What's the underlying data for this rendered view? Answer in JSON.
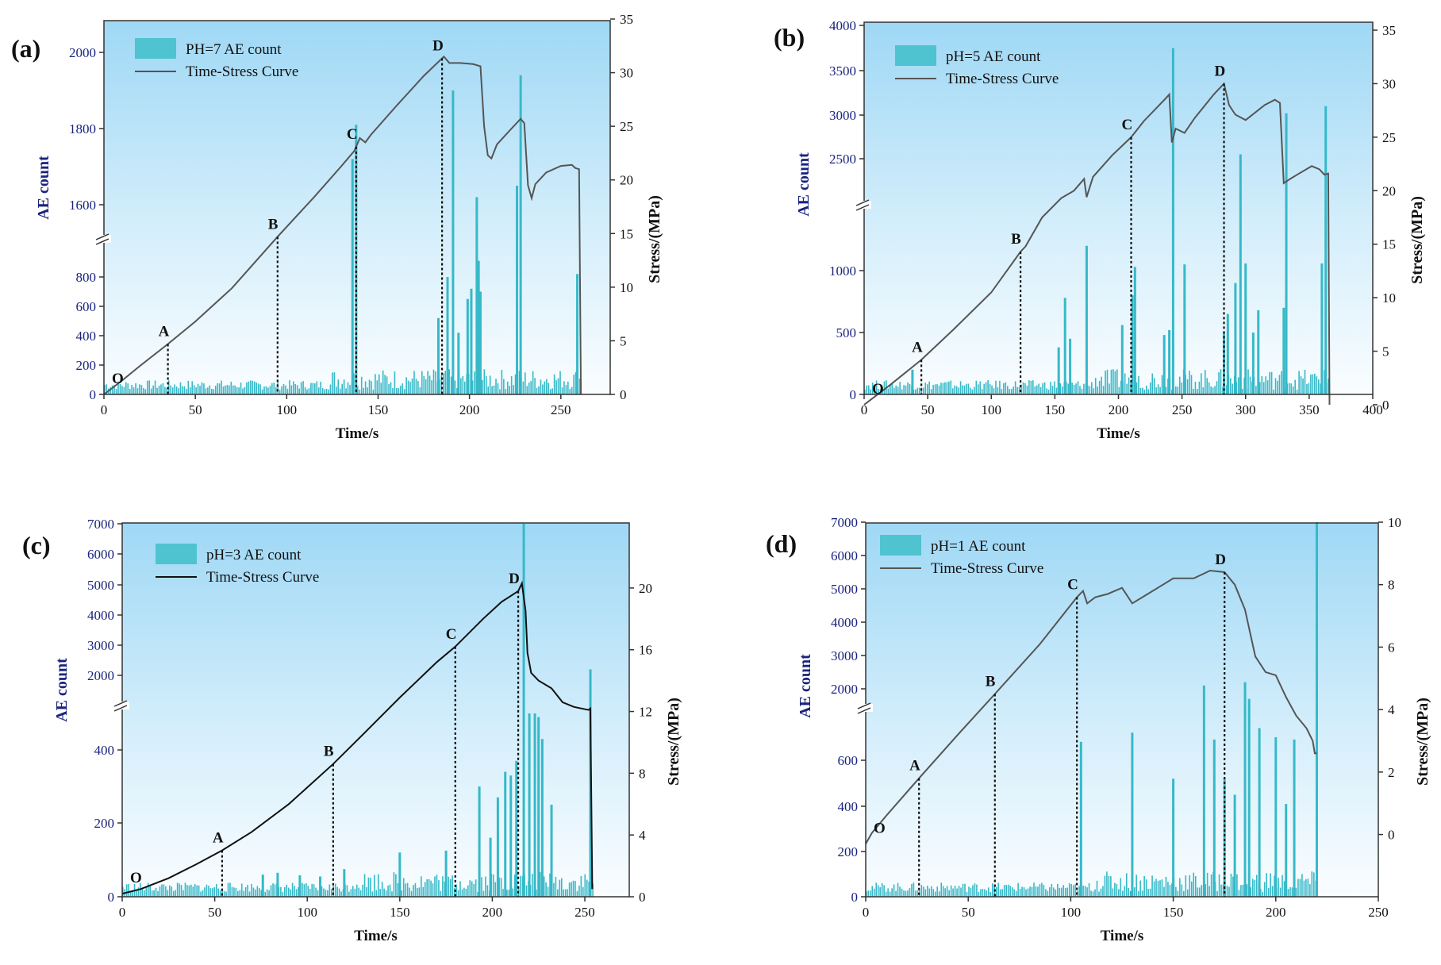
{
  "chart_data": [
    {
      "panel_label": "(a)",
      "type": "bar+line",
      "xlabel": "Time/s",
      "ylabel_left": "AE count",
      "ylabel_right": "Stress/(MPa)",
      "xlim": [
        0,
        277
      ],
      "x_ticks": [
        "0",
        "50",
        "100",
        "150",
        "200",
        "250"
      ],
      "y_left_broken_axis": true,
      "y_left_lower_ticks": [
        "0",
        "200",
        "400",
        "600",
        "800"
      ],
      "y_left_upper_ticks": [
        "1600",
        "1800",
        "2000"
      ],
      "y_right_ticks": [
        "0",
        "5",
        "10",
        "15",
        "20",
        "25",
        "30",
        "35"
      ],
      "ylim_right": [
        0,
        35
      ],
      "legend": {
        "position": "top-left",
        "bar_label": "PH=7 AE count",
        "line_label": "Time-Stress Curve"
      },
      "stress_curve": [
        [
          0,
          0
        ],
        [
          10,
          1.3
        ],
        [
          20,
          2.7
        ],
        [
          35,
          4.7
        ],
        [
          50,
          6.8
        ],
        [
          70,
          9.9
        ],
        [
          95,
          14.7
        ],
        [
          115,
          18.4
        ],
        [
          130,
          21.3
        ],
        [
          137,
          22.7
        ],
        [
          140,
          23.9
        ],
        [
          143,
          23.5
        ],
        [
          146,
          24.2
        ],
        [
          160,
          26.9
        ],
        [
          175,
          29.7
        ],
        [
          186,
          31.5
        ],
        [
          189,
          30.9
        ],
        [
          195,
          30.9
        ],
        [
          202,
          30.8
        ],
        [
          206,
          30.6
        ],
        [
          208,
          25.0
        ],
        [
          210,
          22.3
        ],
        [
          212,
          22.0
        ],
        [
          215,
          23.3
        ],
        [
          222,
          24.6
        ],
        [
          228,
          25.7
        ],
        [
          230,
          25.3
        ],
        [
          232,
          19.5
        ],
        [
          234,
          18.3
        ],
        [
          236,
          19.6
        ],
        [
          242,
          20.7
        ],
        [
          250,
          21.3
        ],
        [
          256,
          21.4
        ],
        [
          258,
          21.1
        ],
        [
          260,
          21.0
        ],
        [
          261,
          0
        ]
      ],
      "points": [
        {
          "label": "O",
          "x": 0
        },
        {
          "label": "A",
          "x": 35
        },
        {
          "label": "B",
          "x": 95
        },
        {
          "label": "C",
          "x": 138
        },
        {
          "label": "D",
          "x": 185
        }
      ],
      "ae_spikes": [
        [
          136,
          1720
        ],
        [
          138,
          1810
        ],
        [
          183,
          520
        ],
        [
          188,
          800
        ],
        [
          191,
          1900
        ],
        [
          194,
          420
        ],
        [
          199,
          650
        ],
        [
          201,
          720
        ],
        [
          204,
          1620
        ],
        [
          205,
          910
        ],
        [
          206,
          700
        ],
        [
          226,
          1650
        ],
        [
          228,
          1940
        ],
        [
          259,
          820
        ]
      ]
    },
    {
      "panel_label": "(b)",
      "type": "bar+line",
      "xlabel": "Time/s",
      "ylabel_left": "AE count",
      "ylabel_right": "Stress/(MPa)",
      "xlim": [
        0,
        400
      ],
      "x_ticks": [
        "0",
        "50",
        "100",
        "150",
        "200",
        "250",
        "300",
        "350",
        "400"
      ],
      "y_left_broken_axis": true,
      "y_left_lower_ticks": [
        "0",
        "500",
        "1000"
      ],
      "y_left_upper_ticks": [
        "2500",
        "3000",
        "3500",
        "4000"
      ],
      "y_right_ticks": [
        "0",
        "5",
        "10",
        "15",
        "20",
        "25",
        "30",
        "35"
      ],
      "ylim_right": [
        0,
        35
      ],
      "legend": {
        "position": "top-left",
        "bar_label": "pH=5 AE count",
        "line_label": "Time-Stress Curve"
      },
      "stress_curve": [
        [
          0,
          0
        ],
        [
          20,
          1.8
        ],
        [
          45,
          4.2
        ],
        [
          70,
          7.0
        ],
        [
          100,
          10.5
        ],
        [
          123,
          14.3
        ],
        [
          127,
          14.8
        ],
        [
          140,
          17.5
        ],
        [
          155,
          19.3
        ],
        [
          165,
          20.0
        ],
        [
          173,
          21.1
        ],
        [
          175,
          19.4
        ],
        [
          180,
          21.3
        ],
        [
          195,
          23.3
        ],
        [
          210,
          25.0
        ],
        [
          220,
          26.5
        ],
        [
          237,
          28.6
        ],
        [
          240,
          29.0
        ],
        [
          242,
          24.5
        ],
        [
          245,
          25.8
        ],
        [
          252,
          25.4
        ],
        [
          260,
          26.8
        ],
        [
          275,
          29.0
        ],
        [
          283,
          30.0
        ],
        [
          287,
          28.0
        ],
        [
          292,
          27.1
        ],
        [
          300,
          26.6
        ],
        [
          315,
          28.0
        ],
        [
          323,
          28.5
        ],
        [
          327,
          28.2
        ],
        [
          330,
          20.7
        ],
        [
          335,
          21.1
        ],
        [
          342,
          21.6
        ],
        [
          352,
          22.3
        ],
        [
          358,
          22.0
        ],
        [
          362,
          21.5
        ],
        [
          365,
          21.6
        ],
        [
          366,
          0
        ]
      ],
      "points": [
        {
          "label": "O",
          "x": 0
        },
        {
          "label": "A",
          "x": 45
        },
        {
          "label": "B",
          "x": 123
        },
        {
          "label": "C",
          "x": 210
        },
        {
          "label": "D",
          "x": 283
        }
      ],
      "ae_spikes": [
        [
          38,
          200
        ],
        [
          153,
          380
        ],
        [
          158,
          780
        ],
        [
          162,
          450
        ],
        [
          175,
          1200
        ],
        [
          203,
          560
        ],
        [
          211,
          800
        ],
        [
          213,
          1030
        ],
        [
          236,
          480
        ],
        [
          240,
          520
        ],
        [
          243,
          3750
        ],
        [
          252,
          1050
        ],
        [
          283,
          500
        ],
        [
          286,
          650
        ],
        [
          292,
          900
        ],
        [
          296,
          2550
        ],
        [
          300,
          1300
        ],
        [
          306,
          500
        ],
        [
          310,
          680
        ],
        [
          330,
          700
        ],
        [
          332,
          3020
        ],
        [
          360,
          1300
        ],
        [
          363,
          3100
        ]
      ]
    },
    {
      "panel_label": "(c)",
      "type": "bar+line",
      "xlabel": "Time/s",
      "ylabel_left": "AE count",
      "ylabel_right": "Stress/(MPa)",
      "xlim": [
        0,
        274
      ],
      "x_ticks": [
        "0",
        "50",
        "100",
        "150",
        "200",
        "250"
      ],
      "y_left_broken_axis": true,
      "y_left_lower_ticks": [
        "0",
        "200",
        "400"
      ],
      "y_left_upper_ticks": [
        "2000",
        "3000",
        "4000",
        "5000",
        "6000",
        "7000"
      ],
      "y_right_ticks": [
        "0",
        "4",
        "8",
        "12",
        "16",
        "20"
      ],
      "ylim_right": [
        0,
        22
      ],
      "legend": {
        "position": "top-left",
        "bar_label": "pH=3 AE count",
        "line_label": "Time-Stress Curve"
      },
      "stress_curve": [
        [
          0,
          0.2
        ],
        [
          10,
          0.5
        ],
        [
          25,
          1.2
        ],
        [
          40,
          2.1
        ],
        [
          54,
          3.0
        ],
        [
          70,
          4.2
        ],
        [
          90,
          6.0
        ],
        [
          114,
          8.6
        ],
        [
          130,
          10.5
        ],
        [
          150,
          12.9
        ],
        [
          170,
          15.2
        ],
        [
          180,
          16.2
        ],
        [
          195,
          18.0
        ],
        [
          205,
          19.1
        ],
        [
          214,
          19.8
        ],
        [
          216,
          20.3
        ],
        [
          218,
          18.5
        ],
        [
          219,
          15.8
        ],
        [
          221,
          14.5
        ],
        [
          225,
          14.0
        ],
        [
          232,
          13.5
        ],
        [
          238,
          12.6
        ],
        [
          244,
          12.3
        ],
        [
          248,
          12.2
        ],
        [
          252,
          12.1
        ],
        [
          253,
          12.2
        ],
        [
          254,
          0.5
        ]
      ],
      "points": [
        {
          "label": "O",
          "x": 0
        },
        {
          "label": "A",
          "x": 54
        },
        {
          "label": "B",
          "x": 114
        },
        {
          "label": "C",
          "x": 180
        },
        {
          "label": "D",
          "x": 214
        }
      ],
      "ae_spikes": [
        [
          76,
          60
        ],
        [
          84,
          65
        ],
        [
          96,
          58
        ],
        [
          107,
          55
        ],
        [
          120,
          75
        ],
        [
          150,
          120
        ],
        [
          175,
          125
        ],
        [
          193,
          300
        ],
        [
          199,
          160
        ],
        [
          203,
          270
        ],
        [
          207,
          340
        ],
        [
          210,
          330
        ],
        [
          213,
          370
        ],
        [
          217,
          7000
        ],
        [
          220,
          500
        ],
        [
          223,
          500
        ],
        [
          225,
          490
        ],
        [
          227,
          430
        ],
        [
          232,
          250
        ],
        [
          253,
          2200
        ]
      ]
    },
    {
      "panel_label": "(d)",
      "type": "bar+line",
      "xlabel": "Time/s",
      "ylabel_left": "AE count",
      "ylabel_right": "Stress/(MPa)",
      "xlim": [
        0,
        250
      ],
      "x_ticks": [
        "0",
        "50",
        "100",
        "150",
        "200",
        "250"
      ],
      "y_left_broken_axis": true,
      "y_left_lower_ticks": [
        "0",
        "200",
        "400",
        "600"
      ],
      "y_left_upper_ticks": [
        "2000",
        "3000",
        "4000",
        "5000",
        "6000",
        "7000"
      ],
      "y_right_ticks": [
        "0",
        "2",
        "4",
        "6",
        "8",
        "10"
      ],
      "ylim_right": [
        -0.9,
        10
      ],
      "legend": {
        "position": "top-left",
        "bar_label": "pH=1 AE count",
        "line_label": "Time-Stress Curve"
      },
      "stress_curve": [
        [
          0,
          -0.3
        ],
        [
          3,
          0.05
        ],
        [
          10,
          0.6
        ],
        [
          26,
          1.8
        ],
        [
          45,
          3.2
        ],
        [
          63,
          4.5
        ],
        [
          85,
          6.1
        ],
        [
          103,
          7.6
        ],
        [
          106,
          7.8
        ],
        [
          108,
          7.4
        ],
        [
          112,
          7.6
        ],
        [
          118,
          7.7
        ],
        [
          125,
          7.9
        ],
        [
          130,
          7.4
        ],
        [
          135,
          7.6
        ],
        [
          145,
          8.0
        ],
        [
          150,
          8.2
        ],
        [
          160,
          8.2
        ],
        [
          168,
          8.45
        ],
        [
          175,
          8.4
        ],
        [
          180,
          8.0
        ],
        [
          185,
          7.2
        ],
        [
          190,
          5.7
        ],
        [
          195,
          5.2
        ],
        [
          200,
          5.1
        ],
        [
          205,
          4.4
        ],
        [
          210,
          3.8
        ],
        [
          215,
          3.4
        ],
        [
          218,
          3.0
        ],
        [
          219,
          2.6
        ],
        [
          220,
          2.6
        ]
      ],
      "points": [
        {
          "label": "O",
          "x": 0
        },
        {
          "label": "A",
          "x": 26
        },
        {
          "label": "B",
          "x": 63
        },
        {
          "label": "C",
          "x": 103
        },
        {
          "label": "D",
          "x": 175
        }
      ],
      "ae_spikes": [
        [
          105,
          680
        ],
        [
          130,
          720
        ],
        [
          150,
          520
        ],
        [
          165,
          2100
        ],
        [
          170,
          690
        ],
        [
          175,
          520
        ],
        [
          180,
          450
        ],
        [
          185,
          2200
        ],
        [
          187,
          1700
        ],
        [
          192,
          740
        ],
        [
          200,
          700
        ],
        [
          205,
          410
        ],
        [
          209,
          690
        ],
        [
          220,
          7000
        ]
      ]
    }
  ]
}
